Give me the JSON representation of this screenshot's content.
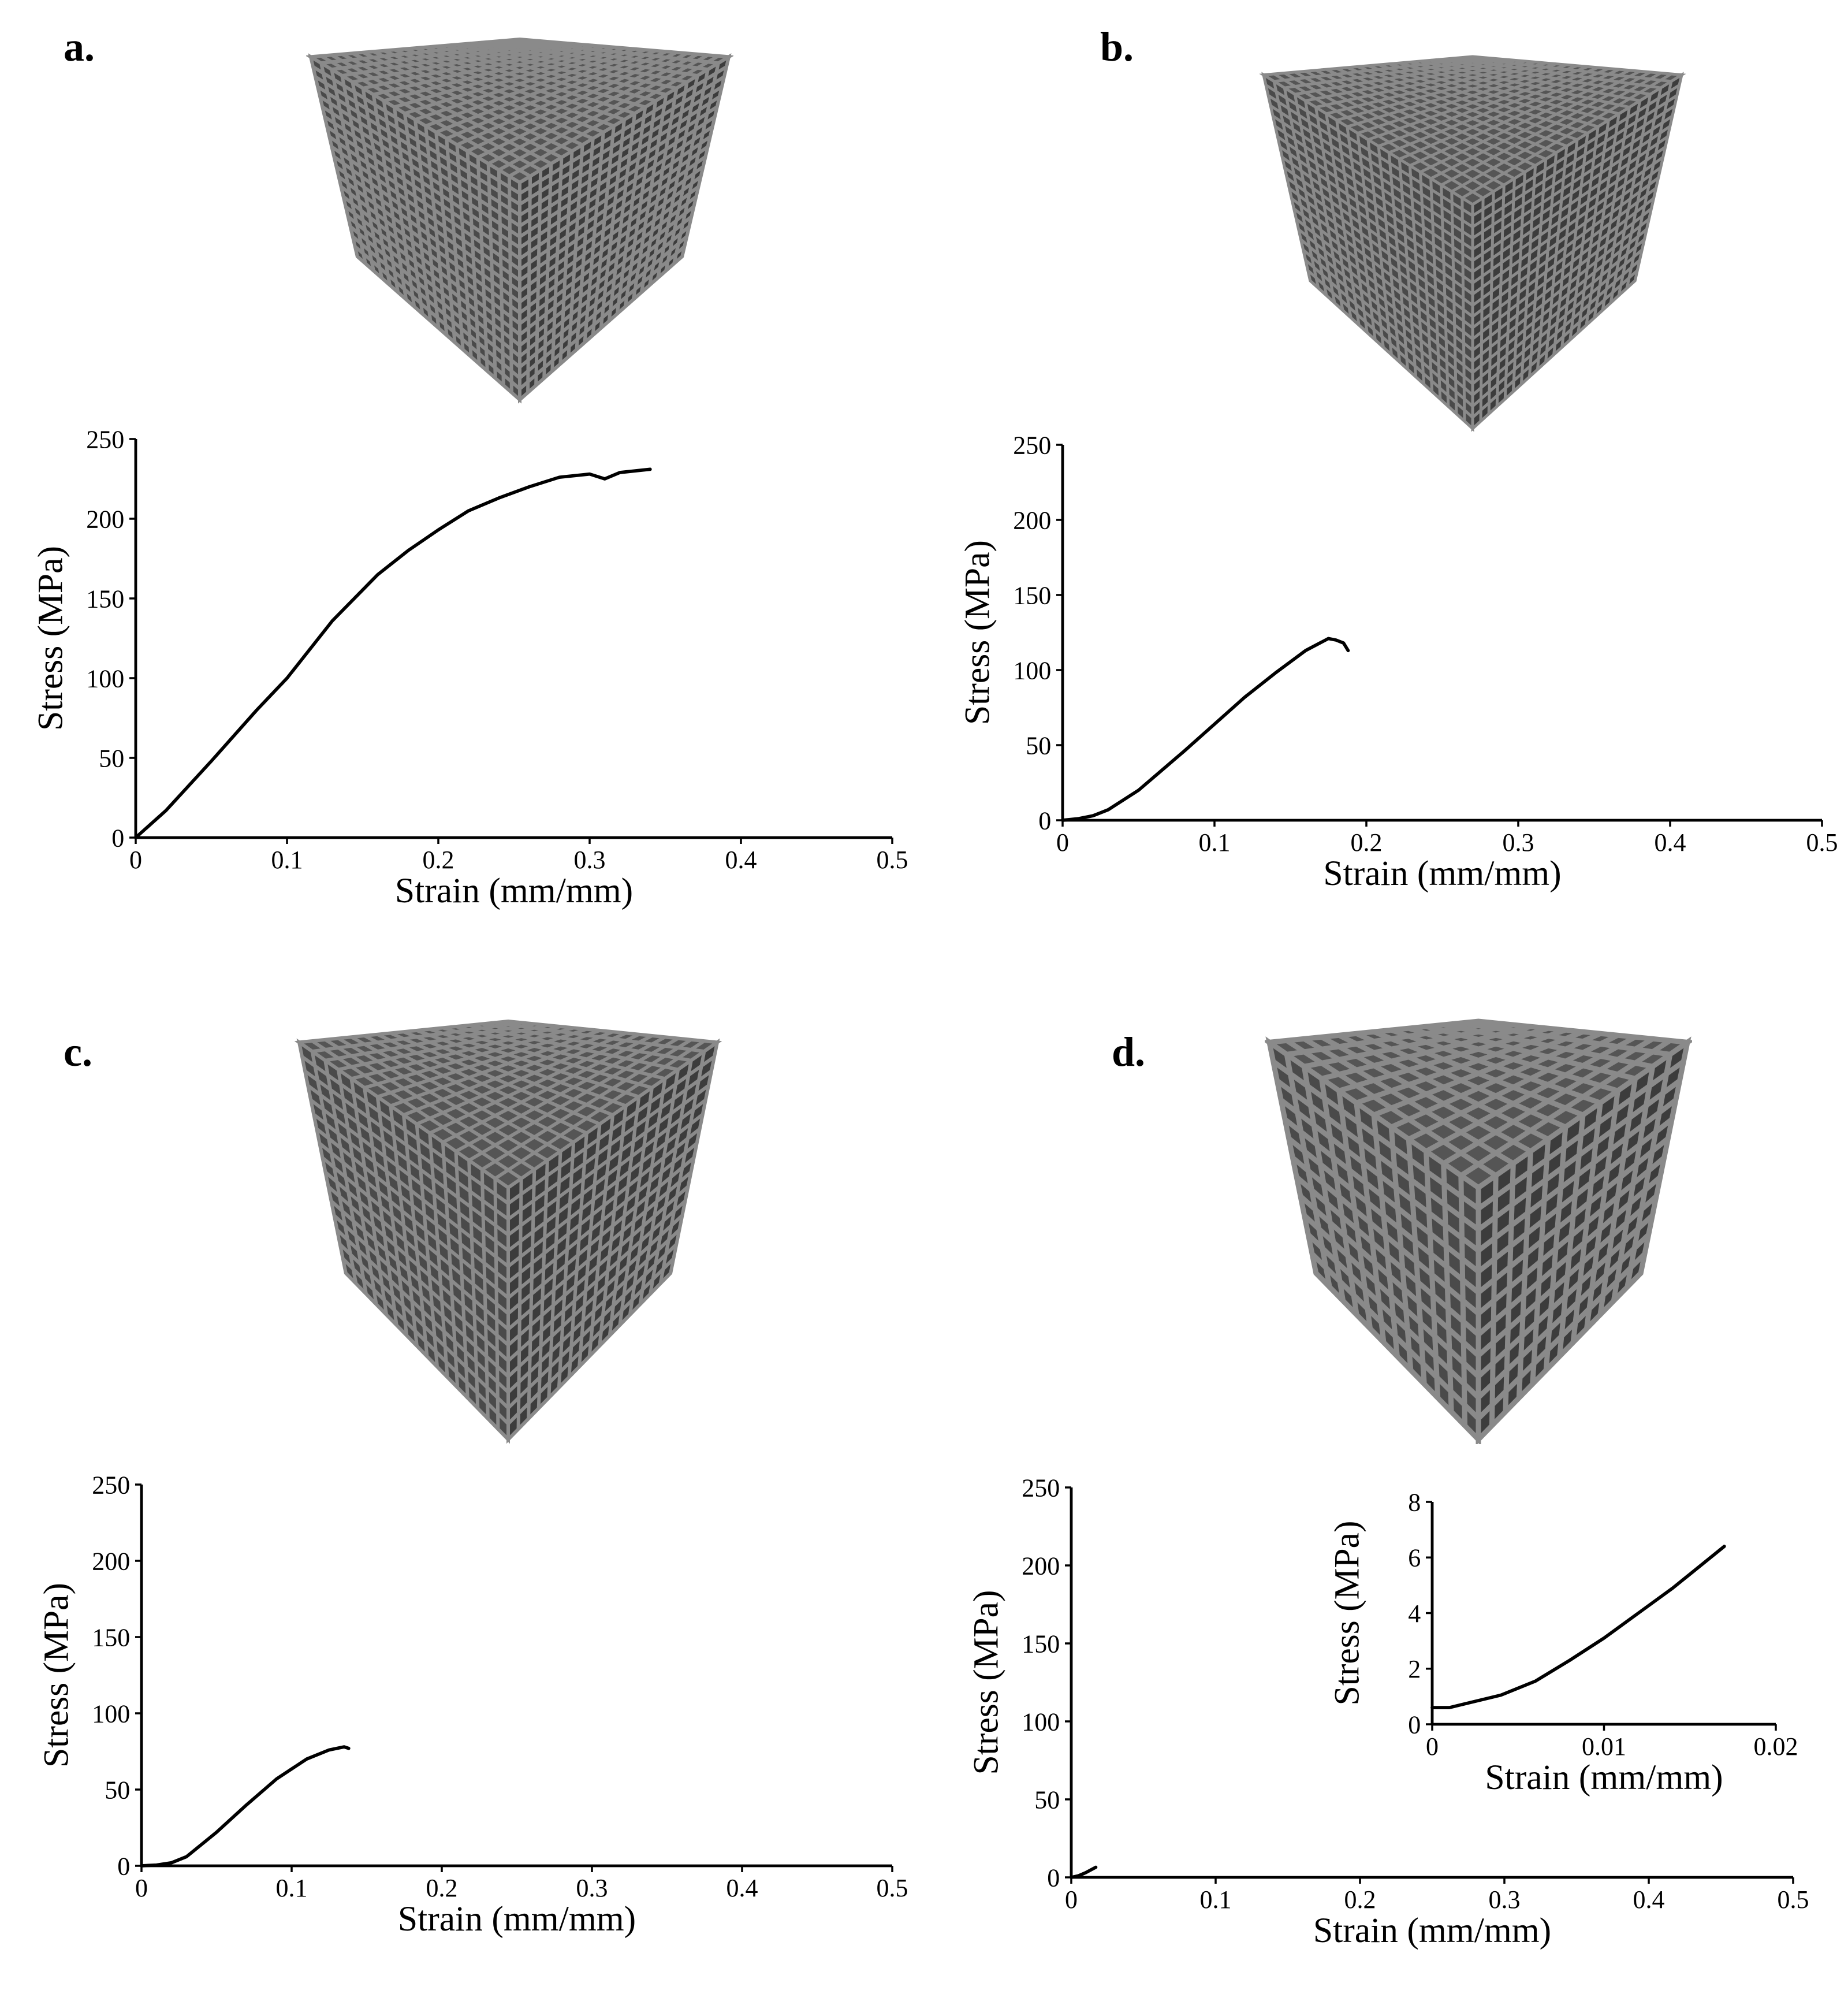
{
  "colors": {
    "curve": "#000000",
    "axis": "#000000",
    "lattice_stroke": "#8a8a8a",
    "lattice_fill": "#4a4a4a"
  },
  "panels": [
    {
      "letter": "a.",
      "lattice_icon": "cubic-lattice-icon"
    },
    {
      "letter": "b.",
      "lattice_icon": "cubic-lattice-icon"
    },
    {
      "letter": "c.",
      "lattice_icon": "cubic-lattice-icon"
    },
    {
      "letter": "d.",
      "lattice_icon": "cross-lattice-icon"
    }
  ],
  "chart_data": [
    {
      "type": "line",
      "xlabel": "Strain (mm/mm)",
      "ylabel": "Stress (MPa)",
      "xlim": [
        0,
        0.5
      ],
      "ylim": [
        0,
        250
      ],
      "xticks": [
        "0",
        "0.1",
        "0.2",
        "0.3",
        "0.4",
        "0.5"
      ],
      "yticks": [
        "0",
        "50",
        "100",
        "150",
        "200",
        "250"
      ],
      "grid": false,
      "series": [
        {
          "x": [
            0,
            0.02,
            0.05,
            0.08,
            0.1,
            0.13,
            0.16,
            0.18,
            0.2,
            0.22,
            0.24,
            0.26,
            0.28,
            0.3,
            0.31,
            0.32,
            0.34
          ],
          "y": [
            0,
            17,
            48,
            80,
            100,
            136,
            165,
            180,
            193,
            205,
            213,
            220,
            226,
            228,
            225,
            229,
            231
          ]
        }
      ]
    },
    {
      "type": "line",
      "xlabel": "Strain (mm/mm)",
      "ylabel": "Stress (MPa)",
      "xlim": [
        0,
        0.5
      ],
      "ylim": [
        0,
        250
      ],
      "xticks": [
        "0",
        "0.1",
        "0.2",
        "0.3",
        "0.4",
        "0.5"
      ],
      "yticks": [
        "0",
        "50",
        "100",
        "150",
        "200",
        "250"
      ],
      "grid": false,
      "series": [
        {
          "x": [
            0,
            0.01,
            0.02,
            0.03,
            0.05,
            0.08,
            0.1,
            0.12,
            0.14,
            0.16,
            0.175,
            0.18,
            0.185,
            0.188
          ],
          "y": [
            0,
            1,
            3,
            7,
            20,
            46,
            64,
            82,
            98,
            113,
            121,
            120,
            118,
            113
          ]
        }
      ]
    },
    {
      "type": "line",
      "xlabel": "Strain (mm/mm)",
      "ylabel": "Stress (MPa)",
      "xlim": [
        0,
        0.5
      ],
      "ylim": [
        0,
        250
      ],
      "xticks": [
        "0",
        "0.1",
        "0.2",
        "0.3",
        "0.4",
        "0.5"
      ],
      "yticks": [
        "0",
        "50",
        "100",
        "150",
        "200",
        "250"
      ],
      "grid": false,
      "series": [
        {
          "x": [
            0,
            0.01,
            0.02,
            0.03,
            0.05,
            0.07,
            0.09,
            0.11,
            0.125,
            0.135,
            0.138
          ],
          "y": [
            0,
            0.5,
            2,
            6,
            22,
            40,
            57,
            70,
            76,
            78,
            77
          ]
        }
      ]
    },
    {
      "type": "line",
      "xlabel": "Strain (mm/mm)",
      "ylabel": "Stress (MPa)",
      "xlim": [
        0,
        0.5
      ],
      "ylim": [
        0,
        250
      ],
      "xticks": [
        "0",
        "0.1",
        "0.2",
        "0.3",
        "0.4",
        "0.5"
      ],
      "yticks": [
        "0",
        "50",
        "100",
        "150",
        "200",
        "250"
      ],
      "grid": false,
      "series": [
        {
          "x": [
            0,
            0.005,
            0.01,
            0.017
          ],
          "y": [
            0,
            1,
            3,
            6.5
          ]
        }
      ]
    },
    {
      "type": "line",
      "role": "inset",
      "xlabel": "Strain (mm/mm)",
      "ylabel": "Stress (MPa)",
      "xlim": [
        0,
        0.02
      ],
      "ylim": [
        0,
        8
      ],
      "xticks": [
        "0",
        "0.01",
        "0.02"
      ],
      "yticks": [
        "0",
        "2",
        "4",
        "6",
        "8"
      ],
      "grid": false,
      "series": [
        {
          "x": [
            0,
            0.001,
            0.002,
            0.004,
            0.006,
            0.008,
            0.01,
            0.012,
            0.014,
            0.016,
            0.017
          ],
          "y": [
            0.6,
            0.6,
            0.75,
            1.05,
            1.55,
            2.3,
            3.1,
            4.0,
            4.9,
            5.9,
            6.4
          ]
        }
      ]
    }
  ]
}
